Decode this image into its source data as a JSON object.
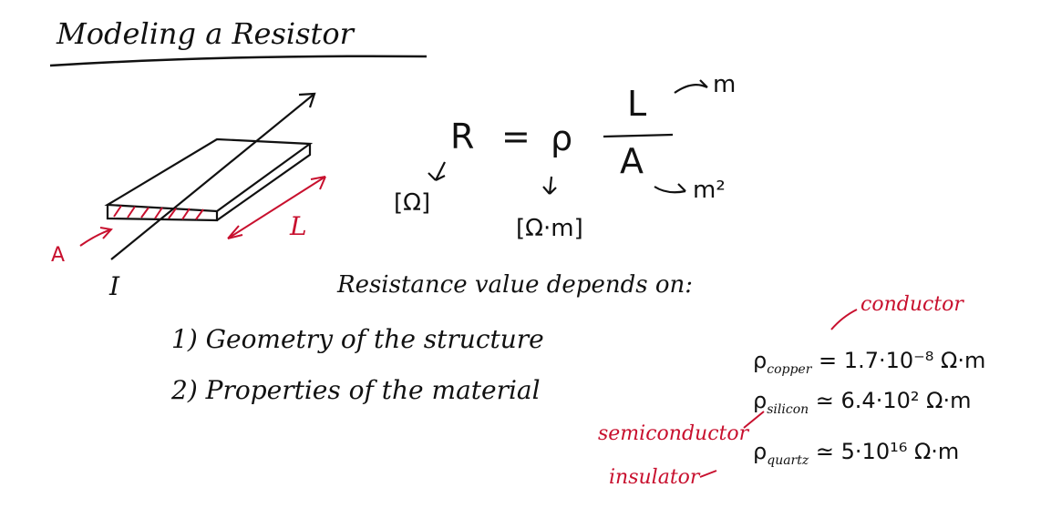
{
  "title": "Modeling a Resistor",
  "formula": {
    "lhs": "R",
    "equals": "=",
    "rho": "ρ",
    "numerator": "L",
    "denominator": "A",
    "units": {
      "R": "[Ω]",
      "rho": "[Ω·m]",
      "L": "m",
      "A": "m²"
    }
  },
  "sketch_labels": {
    "area": "A",
    "length": "L",
    "current": "I"
  },
  "statement": "Resistance value depends on:",
  "factors": [
    "1) Geometry of the structure",
    "2) Properties of the material"
  ],
  "materials": [
    {
      "symbol": "ρ",
      "name": "copper",
      "relation": "=",
      "value": "1.7·10⁻⁸ Ω·m",
      "category": "conductor"
    },
    {
      "symbol": "ρ",
      "name": "silicon",
      "relation": "≃",
      "value": "6.4·10² Ω·m",
      "category": "semiconductor"
    },
    {
      "symbol": "ρ",
      "name": "quartz",
      "relation": "≃",
      "value": "5·10¹⁶ Ω·m",
      "category": "insulator"
    }
  ],
  "colors": {
    "ink": "#111111",
    "annotation": "#c8102e",
    "paper": "#ffffff"
  }
}
